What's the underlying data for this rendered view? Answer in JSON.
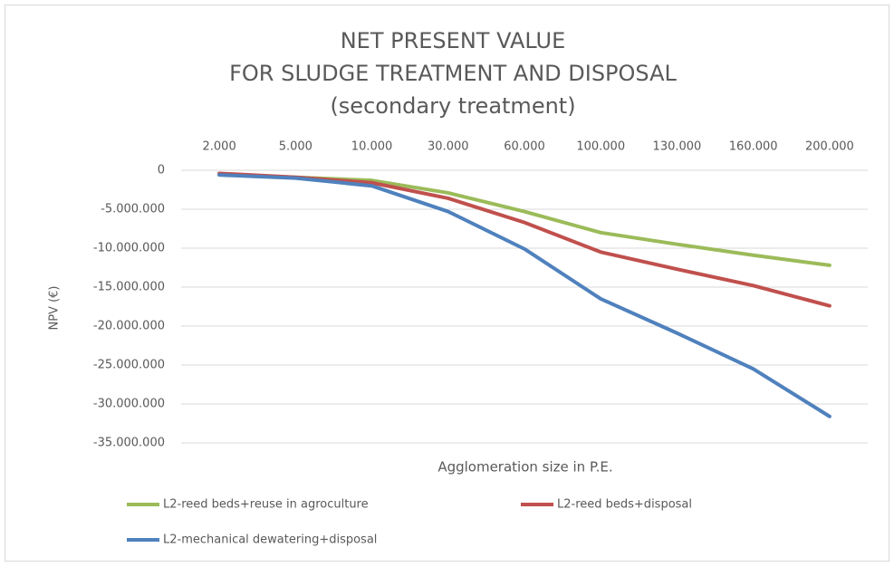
{
  "chart_data": {
    "type": "line",
    "title": [
      "NET  PRESENT VALUE",
      "FOR SLUDGE TREATMENT AND DISPOSAL",
      "(secondary treatment)"
    ],
    "x_label": "Agglomeration size in P.E.",
    "y_label": "NPV (€)",
    "categories": [
      "2.000",
      "5.000",
      "10.000",
      "30.000",
      "60.000",
      "100.000",
      "130.000",
      "160.000",
      "200.000"
    ],
    "series": [
      {
        "name": "L2-reed beds+reuse in agroculture",
        "color": "#9bbb59",
        "values": [
          -500000,
          -900000,
          -1300000,
          -2900000,
          -5300000,
          -8000000,
          -9500000,
          -10900000,
          -12200000
        ]
      },
      {
        "name": "L2-reed beds+disposal",
        "color": "#c0504d",
        "values": [
          -400000,
          -900000,
          -1600000,
          -3600000,
          -6700000,
          -10500000,
          -12700000,
          -14800000,
          -17400000
        ]
      },
      {
        "name": "L2-mechanical dewatering+disposal",
        "color": "#4f81bd",
        "values": [
          -600000,
          -1000000,
          -2000000,
          -5300000,
          -10100000,
          -16500000,
          -20900000,
          -25500000,
          -31600000
        ]
      }
    ],
    "ylim": [
      -35000000,
      0
    ],
    "yticks": [
      0,
      {
        "value": -5000000,
        "label": "-5.000.000"
      },
      {
        "value": -10000000,
        "label": "-10.000.000"
      },
      {
        "value": -15000000,
        "label": "-15.000.000"
      },
      {
        "value": -20000000,
        "label": "-20.000.000"
      },
      {
        "value": -25000000,
        "label": "-25.000.000"
      },
      {
        "value": -30000000,
        "label": "-30.000.000"
      },
      {
        "value": -35000000,
        "label": "-35.000.000"
      }
    ],
    "grid": true
  }
}
